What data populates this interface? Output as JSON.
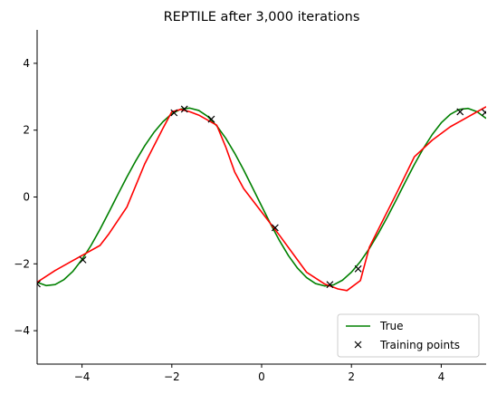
{
  "chart_data": {
    "type": "line",
    "title": "REPTILE after 3,000 iterations",
    "xlabel": "",
    "ylabel": "",
    "xlim": [
      -5,
      5
    ],
    "ylim": [
      -5,
      5
    ],
    "xticks": [
      -4,
      -2,
      0,
      2,
      4
    ],
    "yticks": [
      -4,
      -2,
      0,
      2,
      4
    ],
    "grid": false,
    "legend_position": "bottom-right",
    "series": [
      {
        "name": "True",
        "kind": "line",
        "color": "#008000",
        "x": [
          -5,
          -4.8,
          -4.6,
          -4.4,
          -4.2,
          -4.0,
          -3.8,
          -3.6,
          -3.4,
          -3.2,
          -3.0,
          -2.8,
          -2.6,
          -2.4,
          -2.2,
          -2.0,
          -1.8,
          -1.6,
          -1.4,
          -1.2,
          -1.0,
          -0.8,
          -0.6,
          -0.4,
          -0.2,
          0.0,
          0.2,
          0.4,
          0.6,
          0.8,
          1.0,
          1.2,
          1.4,
          1.6,
          1.8,
          2.0,
          2.2,
          2.4,
          2.6,
          2.8,
          3.0,
          3.2,
          3.4,
          3.6,
          3.8,
          4.0,
          4.2,
          4.4,
          4.6,
          4.8,
          5.0
        ],
        "y": [
          -2.55,
          -2.65,
          -2.62,
          -2.47,
          -2.22,
          -1.87,
          -1.45,
          -0.97,
          -0.45,
          0.08,
          0.6,
          1.09,
          1.54,
          1.93,
          2.25,
          2.49,
          2.63,
          2.66,
          2.59,
          2.41,
          2.13,
          1.76,
          1.31,
          0.81,
          0.27,
          -0.27,
          -0.81,
          -1.31,
          -1.76,
          -2.13,
          -2.41,
          -2.59,
          -2.66,
          -2.63,
          -2.49,
          -2.25,
          -1.93,
          -1.54,
          -1.09,
          -0.6,
          -0.08,
          0.45,
          0.97,
          1.45,
          1.87,
          2.22,
          2.47,
          2.62,
          2.65,
          2.55,
          2.35
        ]
      },
      {
        "name": "",
        "kind": "line",
        "color": "#ff0000",
        "x": [
          -5.0,
          -4.6,
          -4.2,
          -4.0,
          -3.6,
          -3.4,
          -3.0,
          -2.6,
          -2.2,
          -2.0,
          -1.8,
          -1.6,
          -1.4,
          -1.0,
          -0.8,
          -0.6,
          -0.4,
          0.0,
          0.4,
          0.7,
          1.0,
          1.4,
          1.6,
          1.7,
          1.9,
          2.2,
          2.4,
          3.0,
          3.4,
          3.8,
          4.2,
          4.6,
          5.0
        ],
        "y": [
          -2.55,
          -2.2,
          -1.9,
          -1.75,
          -1.45,
          -1.1,
          -0.3,
          1.0,
          2.05,
          2.55,
          2.62,
          2.55,
          2.45,
          2.15,
          1.5,
          0.75,
          0.25,
          -0.45,
          -1.15,
          -1.7,
          -2.25,
          -2.6,
          -2.7,
          -2.75,
          -2.8,
          -2.5,
          -1.5,
          0.1,
          1.2,
          1.7,
          2.1,
          2.4,
          2.7
        ]
      },
      {
        "name": "Training points",
        "kind": "scatter",
        "marker": "x",
        "color": "#000000",
        "x": [
          -5.0,
          -3.98,
          -1.95,
          -1.72,
          -1.12,
          0.3,
          1.52,
          2.15,
          4.42,
          4.98
        ],
        "y": [
          -2.6,
          -1.88,
          2.52,
          2.63,
          2.33,
          -0.92,
          -2.62,
          -2.15,
          2.55,
          2.53
        ]
      }
    ]
  }
}
